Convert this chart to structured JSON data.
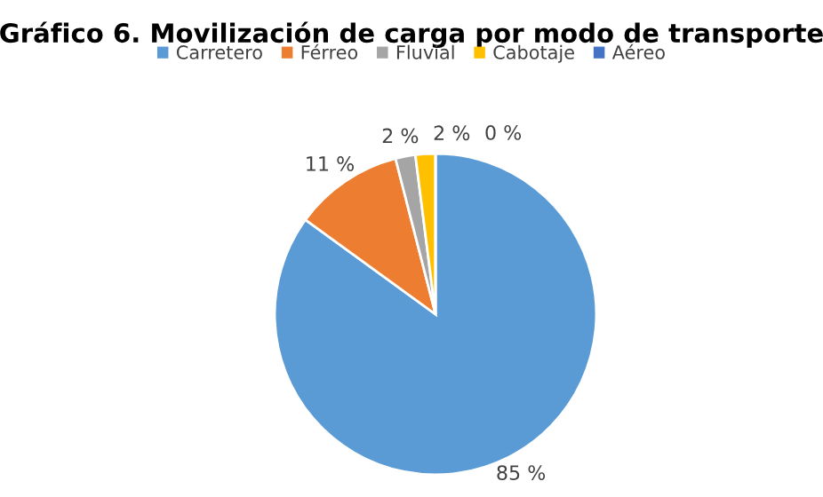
{
  "chart_data": {
    "type": "pie",
    "title": "Gráfico 6. Movilización de carga por modo de transporte",
    "categories": [
      "Carretero",
      "Férreo",
      "Fluvial",
      "Cabotaje",
      "Aéreo"
    ],
    "values": [
      85,
      11,
      2,
      2,
      0
    ],
    "colors": [
      "#5b9bd5",
      "#ed7d31",
      "#a5a5a5",
      "#ffc000",
      "#4472c4"
    ],
    "value_labels": [
      "85 %",
      "11 %",
      "2 %",
      "2 %",
      "0 %"
    ],
    "legend": "top"
  }
}
